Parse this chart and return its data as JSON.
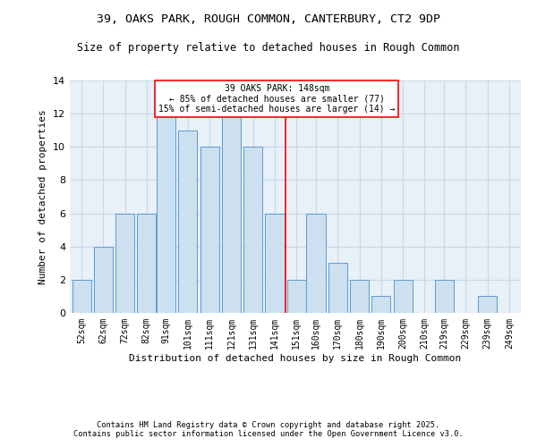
{
  "title_line1": "39, OAKS PARK, ROUGH COMMON, CANTERBURY, CT2 9DP",
  "title_line2": "Size of property relative to detached houses in Rough Common",
  "xlabel": "Distribution of detached houses by size in Rough Common",
  "ylabel": "Number of detached properties",
  "categories": [
    "52sqm",
    "62sqm",
    "72sqm",
    "82sqm",
    "91sqm",
    "101sqm",
    "111sqm",
    "121sqm",
    "131sqm",
    "141sqm",
    "151sqm",
    "160sqm",
    "170sqm",
    "180sqm",
    "190sqm",
    "200sqm",
    "210sqm",
    "219sqm",
    "229sqm",
    "239sqm",
    "249sqm"
  ],
  "values": [
    2,
    4,
    6,
    6,
    12,
    11,
    10,
    12,
    10,
    6,
    2,
    6,
    3,
    2,
    1,
    2,
    0,
    2,
    0,
    1,
    0
  ],
  "bar_color": "#cce0f0",
  "bar_edge_color": "#5b9bd5",
  "vline_color": "red",
  "annotation_text": "39 OAKS PARK: 148sqm\n← 85% of detached houses are smaller (77)\n15% of semi-detached houses are larger (14) →",
  "annotation_box_color": "white",
  "annotation_box_edge_color": "red",
  "ylim": [
    0,
    14
  ],
  "yticks": [
    0,
    2,
    4,
    6,
    8,
    10,
    12,
    14
  ],
  "grid_color": "#c8d8e8",
  "bg_color": "#e8f0f8",
  "footer_line1": "Contains HM Land Registry data © Crown copyright and database right 2025.",
  "footer_line2": "Contains public sector information licensed under the Open Government Licence v3.0.",
  "bin_centers": [
    52,
    62,
    72,
    82,
    91,
    101,
    111,
    121,
    131,
    141,
    151,
    160,
    170,
    180,
    190,
    200,
    210,
    219,
    229,
    239,
    249
  ],
  "bin_width": 9,
  "vline_x_center": 146
}
